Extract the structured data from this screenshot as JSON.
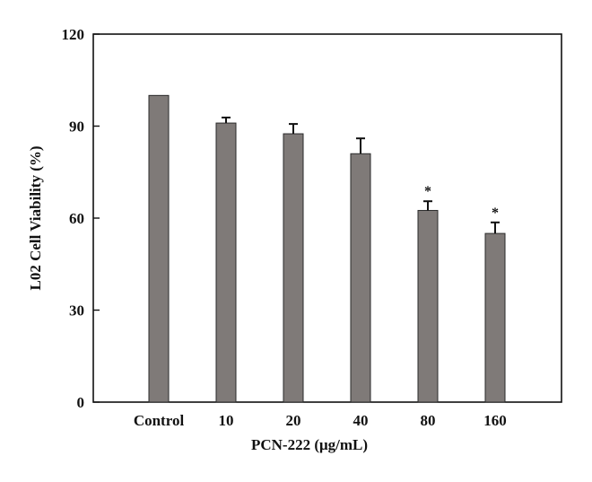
{
  "chart_data": {
    "type": "bar",
    "categories": [
      "Control",
      "10",
      "20",
      "40",
      "80",
      "160"
    ],
    "values": [
      100,
      91,
      87.5,
      81,
      62.5,
      55
    ],
    "errors": [
      0,
      1.8,
      3.2,
      5.0,
      3.0,
      3.6
    ],
    "annotations": [
      "",
      "",
      "",
      "",
      "*",
      "*"
    ],
    "xlabel": "PCN-222 (μg/mL)",
    "ylabel": "L02 Cell Viability (%)",
    "ylim": [
      0,
      120
    ],
    "yticks": [
      "0",
      "30",
      "60",
      "90",
      "120"
    ],
    "grid": false,
    "legend": "none",
    "bar_color": "#7f7a78"
  }
}
